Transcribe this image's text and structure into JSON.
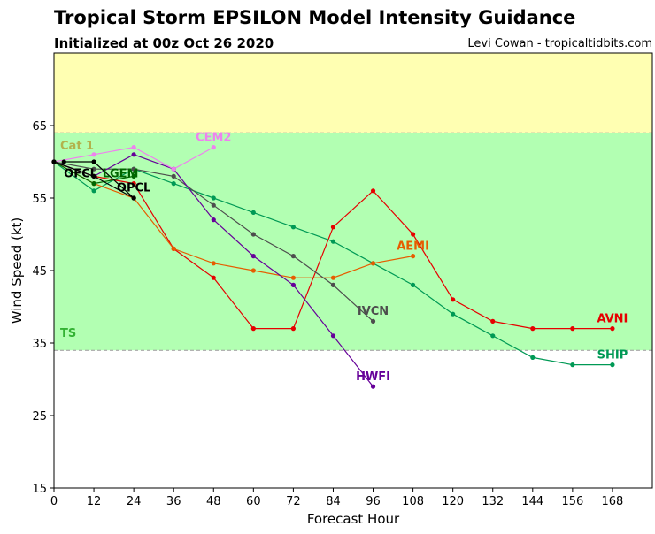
{
  "header": {
    "title": "Tropical Storm EPSILON Model Intensity Guidance",
    "subtitle": "Initialized at 00z Oct 26 2020",
    "credit": "Levi Cowan - tropicaltidbits.com"
  },
  "chart_data": {
    "type": "line",
    "title": "Tropical Storm EPSILON Model Intensity Guidance",
    "subtitle": "Initialized at 00z Oct 26 2020",
    "xlabel": "Forecast Hour",
    "ylabel": "Wind Speed (kt)",
    "xlim": [
      0,
      180
    ],
    "ylim": [
      15,
      75
    ],
    "xticks": [
      0,
      12,
      24,
      36,
      48,
      60,
      72,
      84,
      96,
      108,
      120,
      132,
      144,
      156,
      168
    ],
    "yticks": [
      15,
      25,
      35,
      45,
      55,
      65
    ],
    "grid": false,
    "bands": [
      {
        "label": "Cat 1",
        "from": 64,
        "to": 75,
        "color": "#ffffb2",
        "label_color": "#b2b24c"
      },
      {
        "label": "TS",
        "from": 34,
        "to": 64,
        "color": "#b2ffb2",
        "label_color": "#33b233"
      }
    ],
    "series": [
      {
        "name": "AVNI",
        "color": "#e60000",
        "label_at": [
          168,
          38.5
        ],
        "x": [
          0,
          12,
          24,
          36,
          48,
          60,
          72,
          84,
          96,
          108,
          120,
          132,
          144,
          156,
          168
        ],
        "y": [
          60,
          58,
          57,
          48,
          44,
          37,
          37,
          51,
          56,
          50,
          41,
          38,
          37,
          37,
          37
        ]
      },
      {
        "name": "SHIP",
        "color": "#009955",
        "label_at": [
          168,
          33.5
        ],
        "x": [
          0,
          12,
          24,
          36,
          48,
          60,
          72,
          84,
          96,
          108,
          120,
          132,
          144,
          156,
          168
        ],
        "y": [
          60,
          56,
          59,
          57,
          55,
          53,
          51,
          49,
          46,
          43,
          39,
          36,
          33,
          32,
          32
        ]
      },
      {
        "name": "AEMI",
        "color": "#e65c00",
        "label_at": [
          108,
          48.5
        ],
        "x": [
          0,
          12,
          24,
          36,
          48,
          60,
          72,
          84,
          96,
          108
        ],
        "y": [
          60,
          57,
          55,
          48,
          46,
          45,
          44,
          44,
          46,
          47
        ]
      },
      {
        "name": "IVCN",
        "color": "#4d4d4d",
        "label_at": [
          96,
          39.5
        ],
        "x": [
          0,
          12,
          24,
          36,
          48,
          60,
          72,
          84,
          96
        ],
        "y": [
          60,
          59,
          59,
          58,
          54,
          50,
          47,
          43,
          38
        ]
      },
      {
        "name": "HWFI",
        "color": "#660099",
        "label_at": [
          96,
          30.5
        ],
        "x": [
          0,
          12,
          24,
          36,
          48,
          60,
          72,
          84,
          96
        ],
        "y": [
          60,
          58,
          61,
          59,
          52,
          47,
          43,
          36,
          29
        ]
      },
      {
        "name": "CEM2",
        "color": "#ee82ee",
        "label_at": [
          48,
          63.5
        ],
        "x": [
          0,
          12,
          24,
          36,
          48
        ],
        "y": [
          60,
          61,
          62,
          59,
          62
        ]
      },
      {
        "name": "LGEM",
        "color": "#006600",
        "label_at": [
          20,
          58.5
        ],
        "x": [
          0,
          12,
          24
        ],
        "y": [
          60,
          57,
          58
        ]
      },
      {
        "name": "OFCL",
        "color": "#000000",
        "label_at": [
          8,
          58.5
        ],
        "x": [
          3,
          12,
          24
        ],
        "y": [
          60,
          60,
          55
        ]
      },
      {
        "name": "OPCL",
        "color": "#000000",
        "label_at": [
          24,
          56.5
        ],
        "x": [
          0,
          12,
          24
        ],
        "y": [
          60,
          58,
          55
        ]
      }
    ]
  }
}
